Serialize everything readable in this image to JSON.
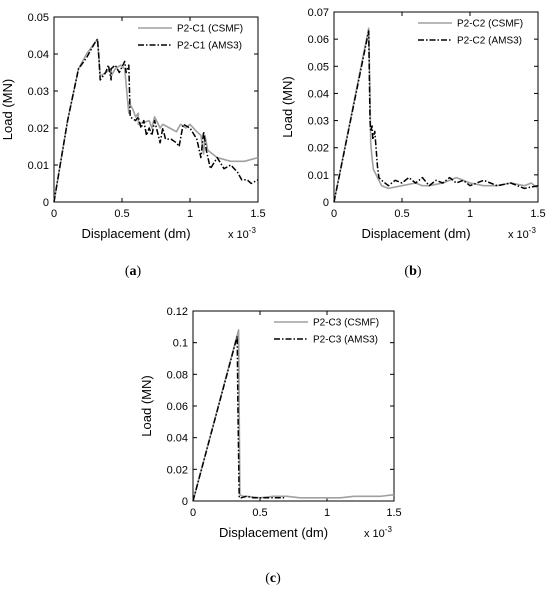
{
  "chart_data": [
    {
      "type": "line",
      "caption_open": "(",
      "caption_letter": "a",
      "caption_close": ")",
      "xlabel": "Displacement (dm)",
      "ylabel": "Load (MN)",
      "x_multiplier": "x 10",
      "x_multiplier_exp": "-3",
      "xlim": [
        0,
        1.5
      ],
      "ylim": [
        0,
        0.05
      ],
      "xticks": [
        0,
        0.5,
        1,
        1.5
      ],
      "xtick_labels": [
        "0",
        "0.5",
        "1",
        "1.5"
      ],
      "yticks": [
        0,
        0.01,
        0.02,
        0.03,
        0.04,
        0.05
      ],
      "ytick_labels": [
        "0",
        "0.01",
        "0.02",
        "0.03",
        "0.04",
        "0.05"
      ],
      "legend_position": "top-right",
      "series": [
        {
          "name": "P2-C1 (CSMF)",
          "color": "#a0a0a0",
          "style": "solid",
          "x": [
            0,
            0.1,
            0.18,
            0.24,
            0.3,
            0.32,
            0.33,
            0.34,
            0.38,
            0.42,
            0.42,
            0.45,
            0.49,
            0.52,
            0.55,
            0.55,
            0.58,
            0.6,
            0.62,
            0.62,
            0.7,
            0.72,
            0.74,
            0.78,
            0.8,
            0.85,
            0.9,
            0.93,
            0.97,
            1.0,
            1.05,
            1.08,
            1.1,
            1.11,
            1.13,
            1.2,
            1.3,
            1.4,
            1.5
          ],
          "y": [
            0,
            0.022,
            0.036,
            0.04,
            0.043,
            0.044,
            0.039,
            0.034,
            0.035,
            0.036,
            0.034,
            0.036,
            0.037,
            0.036,
            0.024,
            0.027,
            0.025,
            0.023,
            0.024,
            0.021,
            0.022,
            0.02,
            0.023,
            0.02,
            0.021,
            0.02,
            0.019,
            0.021,
            0.02,
            0.021,
            0.019,
            0.018,
            0.013,
            0.018,
            0.014,
            0.012,
            0.011,
            0.011,
            0.012
          ]
        },
        {
          "name": "P2-C1 (AMS3)",
          "color": "#000000",
          "style": "dashdot",
          "x": [
            0,
            0.1,
            0.18,
            0.24,
            0.3,
            0.32,
            0.33,
            0.34,
            0.38,
            0.4,
            0.42,
            0.42,
            0.45,
            0.48,
            0.52,
            0.53,
            0.55,
            0.56,
            0.6,
            0.62,
            0.64,
            0.66,
            0.68,
            0.7,
            0.72,
            0.74,
            0.76,
            0.78,
            0.8,
            0.82,
            0.86,
            0.9,
            0.92,
            0.95,
            1.0,
            1.05,
            1.08,
            1.1,
            1.12,
            1.15,
            1.2,
            1.25,
            1.3,
            1.35,
            1.38,
            1.42,
            1.45,
            1.5
          ],
          "y": [
            0,
            0.022,
            0.036,
            0.039,
            0.043,
            0.044,
            0.039,
            0.033,
            0.035,
            0.037,
            0.033,
            0.036,
            0.037,
            0.035,
            0.038,
            0.035,
            0.037,
            0.023,
            0.022,
            0.023,
            0.02,
            0.022,
            0.018,
            0.02,
            0.018,
            0.022,
            0.019,
            0.016,
            0.02,
            0.017,
            0.017,
            0.016,
            0.015,
            0.021,
            0.02,
            0.017,
            0.012,
            0.019,
            0.014,
            0.009,
            0.012,
            0.009,
            0.01,
            0.008,
            0.006,
            0.006,
            0.005,
            0.006
          ]
        }
      ]
    },
    {
      "type": "line",
      "caption_open": "(",
      "caption_letter": "b",
      "caption_close": ")",
      "xlabel": "Displacement (dm)",
      "ylabel": "Load (MN)",
      "x_multiplier": "x 10",
      "x_multiplier_exp": "-3",
      "xlim": [
        0,
        1.5
      ],
      "ylim": [
        0,
        0.07
      ],
      "xticks": [
        0,
        0.5,
        1,
        1.5
      ],
      "xtick_labels": [
        "0",
        "0.5",
        "1",
        "1.5"
      ],
      "yticks": [
        0,
        0.01,
        0.02,
        0.03,
        0.04,
        0.05,
        0.06,
        0.07
      ],
      "ytick_labels": [
        "0",
        "0.01",
        "0.02",
        "0.03",
        "0.04",
        "0.05",
        "0.06",
        "0.07"
      ],
      "legend_position": "top-right",
      "series": [
        {
          "name": "P2-C2 (CSMF)",
          "color": "#a0a0a0",
          "style": "solid",
          "x": [
            0,
            0.255,
            0.265,
            0.27,
            0.28,
            0.29,
            0.31,
            0.35,
            0.4,
            0.5,
            0.6,
            0.65,
            0.7,
            0.8,
            0.9,
            1.0,
            1.1,
            1.2,
            1.3,
            1.4,
            1.45,
            1.5
          ],
          "y": [
            0,
            0.064,
            0.04,
            0.022,
            0.016,
            0.012,
            0.01,
            0.006,
            0.005,
            0.006,
            0.007,
            0.006,
            0.006,
            0.007,
            0.009,
            0.007,
            0.006,
            0.006,
            0.007,
            0.006,
            0.007,
            0.005
          ]
        },
        {
          "name": "P2-C2 (AMS3)",
          "color": "#000000",
          "style": "dashdot",
          "x": [
            0,
            0.255,
            0.265,
            0.27,
            0.28,
            0.285,
            0.3,
            0.32,
            0.33,
            0.35,
            0.4,
            0.45,
            0.5,
            0.55,
            0.6,
            0.65,
            0.7,
            0.75,
            0.8,
            0.85,
            0.9,
            0.95,
            1.0,
            1.1,
            1.2,
            1.3,
            1.4,
            1.5
          ],
          "y": [
            0,
            0.063,
            0.03,
            0.026,
            0.028,
            0.023,
            0.026,
            0.013,
            0.009,
            0.008,
            0.006,
            0.008,
            0.007,
            0.009,
            0.007,
            0.009,
            0.006,
            0.008,
            0.007,
            0.009,
            0.007,
            0.008,
            0.006,
            0.008,
            0.006,
            0.007,
            0.005,
            0.006
          ]
        }
      ]
    },
    {
      "type": "line",
      "caption_open": "(",
      "caption_letter": "c",
      "caption_close": ")",
      "xlabel": "Displacement (dm)",
      "ylabel": "Load (MN)",
      "x_multiplier": "x 10",
      "x_multiplier_exp": "-3",
      "xlim": [
        0,
        1.5
      ],
      "ylim": [
        0,
        0.12
      ],
      "xticks": [
        0,
        0.5,
        1,
        1.5
      ],
      "xtick_labels": [
        "0",
        "0.5",
        "1",
        "1.5"
      ],
      "yticks": [
        0,
        0.02,
        0.04,
        0.06,
        0.08,
        0.1,
        0.12
      ],
      "ytick_labels": [
        "0",
        "0.02",
        "0.04",
        "0.06",
        "0.08",
        "0.1",
        "0.12"
      ],
      "legend_position": "top-right",
      "series": [
        {
          "name": "P2-C3 (CSMF)",
          "color": "#a0a0a0",
          "style": "solid",
          "x": [
            0,
            0.34,
            0.345,
            0.35,
            0.37,
            0.4,
            0.5,
            0.6,
            0.7,
            0.8,
            0.9,
            1.0,
            1.1,
            1.2,
            1.3,
            1.4,
            1.5
          ],
          "y": [
            0,
            0.108,
            0.055,
            0.004,
            0.003,
            0.003,
            0.002,
            0.003,
            0.003,
            0.002,
            0.002,
            0.002,
            0.002,
            0.003,
            0.003,
            0.003,
            0.004
          ]
        },
        {
          "name": "P2-C3 (AMS3)",
          "color": "#000000",
          "style": "dashdot",
          "x": [
            0,
            0.33,
            0.335,
            0.345,
            0.36,
            0.4,
            0.45,
            0.5,
            0.55,
            0.6,
            0.65,
            0.68
          ],
          "y": [
            0,
            0.104,
            0.06,
            0.002,
            0.002,
            0.003,
            0.002,
            0.002,
            0.002,
            0.002,
            0.002,
            0.002
          ]
        }
      ]
    }
  ]
}
